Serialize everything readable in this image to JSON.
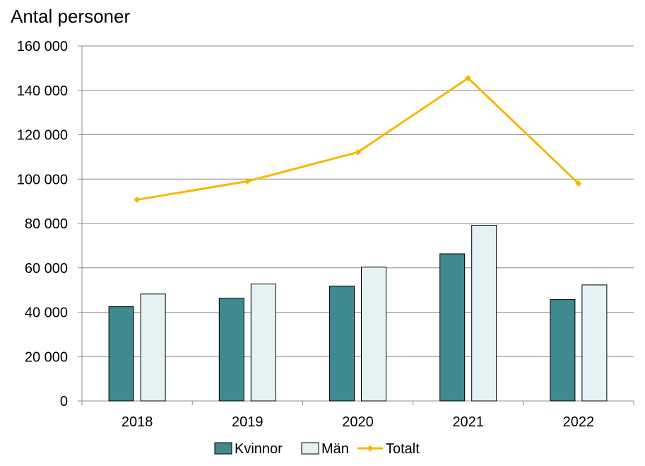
{
  "chart_data": {
    "type": "bar",
    "title": "Antal personer",
    "categories": [
      "2018",
      "2019",
      "2020",
      "2021",
      "2022"
    ],
    "series": [
      {
        "name": "Kvinnor",
        "type": "bar",
        "color": "#3e8a8f",
        "values": [
          42500,
          46300,
          51800,
          66300,
          45700
        ]
      },
      {
        "name": "Män",
        "type": "bar",
        "color": "#e4f2f3",
        "values": [
          48200,
          52700,
          60300,
          79200,
          52300
        ]
      },
      {
        "name": "Totalt",
        "type": "line",
        "color": "#f5b800",
        "values": [
          90700,
          99000,
          112100,
          145500,
          98000
        ]
      }
    ],
    "ylim": [
      0,
      160000
    ],
    "yticks": [
      0,
      20000,
      40000,
      60000,
      80000,
      100000,
      120000,
      140000,
      160000
    ],
    "ytick_labels": [
      "0",
      "20 000",
      "40 000",
      "60 000",
      "80 000",
      "100 000",
      "120 000",
      "140 000",
      "160 000"
    ],
    "grid": true,
    "legend": "bottom"
  }
}
